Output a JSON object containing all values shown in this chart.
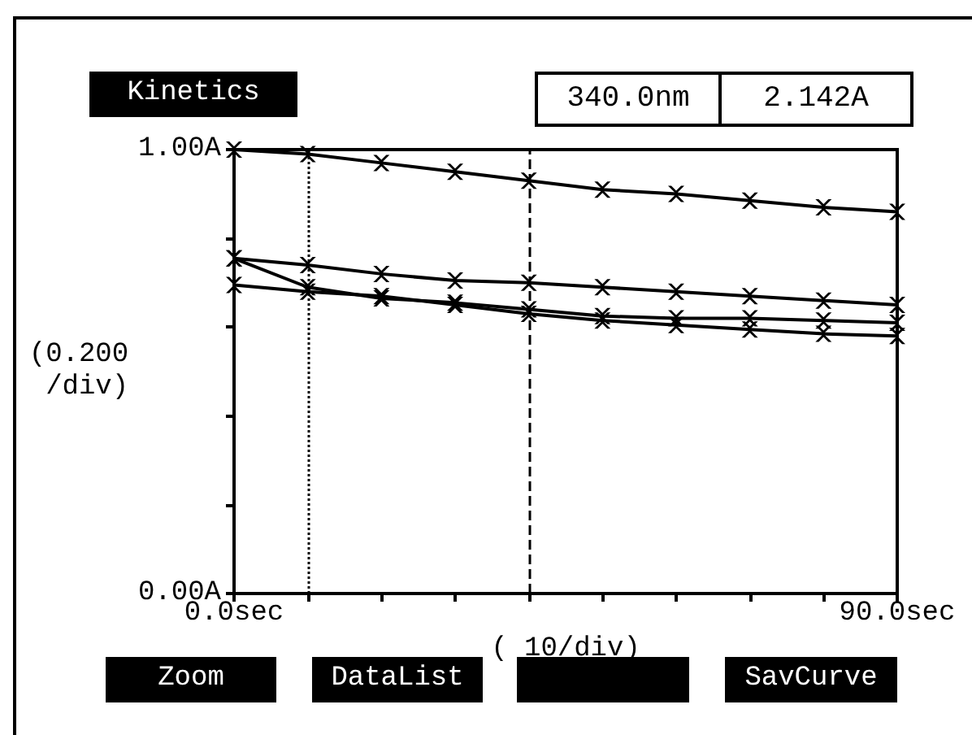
{
  "chart_data": {
    "type": "line",
    "title": "Kinetics",
    "xlabel": "( 10/div)",
    "ylabel": "(0.200\n/div)",
    "x": [
      0,
      10,
      20,
      30,
      40,
      50,
      60,
      70,
      80,
      90
    ],
    "series": [
      {
        "color": "#000000",
        "values": [
          1.0,
          0.99,
          0.97,
          0.95,
          0.93,
          0.91,
          0.9,
          0.885,
          0.87,
          0.86
        ]
      },
      {
        "color": "#000000",
        "values": [
          0.755,
          0.74,
          0.72,
          0.705,
          0.7,
          0.69,
          0.68,
          0.67,
          0.66,
          0.65
        ]
      },
      {
        "color": "#000000",
        "values": [
          0.755,
          0.69,
          0.665,
          0.655,
          0.64,
          0.625,
          0.62,
          0.62,
          0.615,
          0.61
        ]
      },
      {
        "color": "#000000",
        "values": [
          0.695,
          0.68,
          0.67,
          0.65,
          0.63,
          0.615,
          0.605,
          0.595,
          0.585,
          0.58
        ]
      }
    ],
    "xlim": [
      0,
      90
    ],
    "xticks": [
      {
        "value": 0,
        "label": "0.0sec"
      },
      {
        "value": 10,
        "label": null
      },
      {
        "value": 20,
        "label": null
      },
      {
        "value": 30,
        "label": null
      },
      {
        "value": 40,
        "label": null
      },
      {
        "value": 50,
        "label": null
      },
      {
        "value": 60,
        "label": null
      },
      {
        "value": 70,
        "label": null
      },
      {
        "value": 80,
        "label": null
      },
      {
        "value": 90,
        "label": "90.0sec"
      }
    ],
    "ylim": [
      0,
      1
    ],
    "yticks": [
      {
        "value": 0,
        "label": "0.00A"
      },
      {
        "value": 0.2,
        "label": null
      },
      {
        "value": 0.4,
        "label": null
      },
      {
        "value": 0.6,
        "label": null
      },
      {
        "value": 0.8,
        "label": null
      },
      {
        "value": 1,
        "label": "1.00A"
      }
    ],
    "ref_lines": [
      {
        "axis": "x",
        "value": 10,
        "line_style": "dotted"
      },
      {
        "axis": "x",
        "value": 40,
        "line_style": "dashed"
      }
    ],
    "annotations": [
      "340.0nm",
      "2.142A",
      "Zoom",
      "DataList",
      "SavCurve"
    ],
    "marker": "cross",
    "line_style": "solid"
  }
}
